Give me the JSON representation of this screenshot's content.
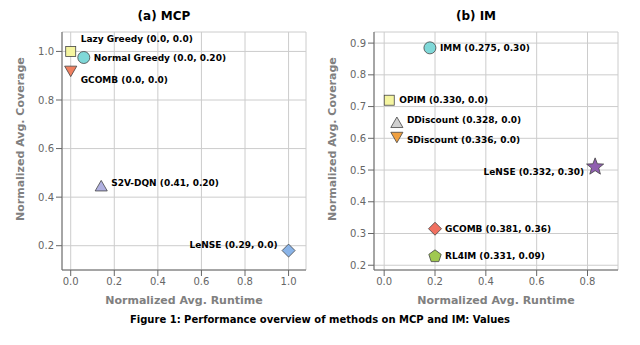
{
  "title": "Figure 1: Performance overview of methods on MCP and IM: Values",
  "chart_data": [
    {
      "type": "scatter",
      "title": "(a) MCP",
      "x_label": "Normalized Avg. Runtime",
      "y_label": "Normalized Avg. Coverage",
      "xlim": [
        -0.04,
        1.08
      ],
      "ylim": [
        0.1,
        1.08
      ],
      "xticks": [
        {
          "value": 0.0,
          "label": "0.0"
        },
        0.2,
        0.4,
        0.6,
        0.8,
        {
          "value": 1.0,
          "label": "1.0"
        }
      ],
      "yticks": [
        0.2,
        0.4,
        0.6,
        0.8,
        {
          "value": 1.0,
          "label": "1.0"
        }
      ],
      "grid": true,
      "series": [
        {
          "name": "Lazy Greedy (0.0, 0.0)",
          "color": "#f5f5a0",
          "marker": "square",
          "x": [
            0.0
          ],
          "values": [
            1.0
          ]
        },
        {
          "name": "Normal Greedy (0.0, 0.20)",
          "color": "#7fd8d8",
          "marker": "circle",
          "x": [
            0.06
          ],
          "values": [
            0.975
          ]
        },
        {
          "name": "GCOMB (0.0, 0.0)",
          "color": "#f08060",
          "marker": "triangle_down",
          "x": [
            0.0
          ],
          "values": [
            0.925
          ]
        },
        {
          "name": "S2V-DQN (0.41, 0.20)",
          "color": "#b0b0e0",
          "marker": "triangle",
          "x": [
            0.14
          ],
          "values": [
            0.44
          ]
        },
        {
          "name": "LeNSE (0.29, 0.0)",
          "color": "#8ab4e8",
          "marker": "diamond",
          "x": [
            1.0
          ],
          "values": [
            0.18
          ]
        }
      ]
    },
    {
      "type": "scatter",
      "title": "(b) IM",
      "x_label": "Normalized Avg. Runtime",
      "y_label": "Normalized Avg. Coverage",
      "xlim": [
        -0.04,
        0.92
      ],
      "ylim": [
        0.185,
        0.935
      ],
      "xticks": [
        {
          "value": 0.0,
          "label": "0.0"
        },
        0.2,
        0.4,
        0.6,
        0.8
      ],
      "yticks": [
        0.2,
        0.3,
        0.4,
        0.5,
        0.6,
        0.7,
        0.8,
        0.9
      ],
      "grid": true,
      "series": [
        {
          "name": "IMM (0.275, 0.30)",
          "color": "#7fd8d8",
          "marker": "circle",
          "x": [
            0.18
          ],
          "values": [
            0.885
          ]
        },
        {
          "name": "OPIM (0.330, 0.0)",
          "color": "#f5f5a0",
          "marker": "square",
          "x": [
            0.02
          ],
          "values": [
            0.72
          ]
        },
        {
          "name": "DDiscount (0.328, 0.0)",
          "color": "#d0d0d0",
          "marker": "triangle",
          "x": [
            0.05
          ],
          "values": [
            0.645
          ]
        },
        {
          "name": "SDiscount (0.336, 0.0)",
          "color": "#f0a040",
          "marker": "triangle_down",
          "x": [
            0.05
          ],
          "values": [
            0.608
          ]
        },
        {
          "name": "LeNSE (0.332, 0.30)",
          "color": "#9060b0",
          "marker": "star",
          "x": [
            0.83
          ],
          "values": [
            0.51
          ]
        },
        {
          "name": "GCOMB (0.381, 0.36)",
          "color": "#f07060",
          "marker": "diamond",
          "x": [
            0.2
          ],
          "values": [
            0.315
          ]
        },
        {
          "name": "RL4IM (0.331, 0.09)",
          "color": "#a0c850",
          "marker": "pentagon",
          "x": [
            0.2
          ],
          "values": [
            0.228
          ]
        }
      ]
    }
  ]
}
